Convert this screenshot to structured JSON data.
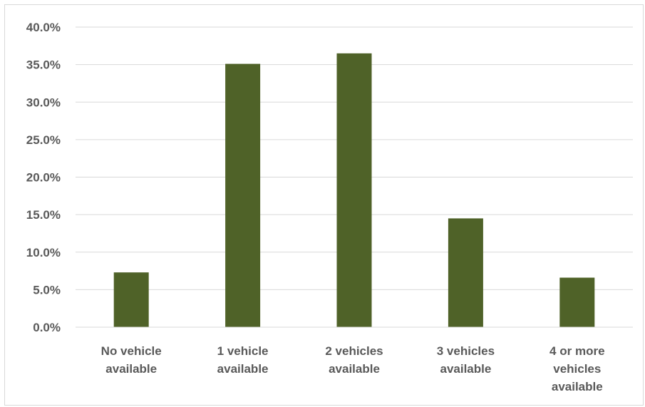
{
  "chart_data": {
    "type": "bar",
    "title": "",
    "xlabel": "",
    "ylabel": "",
    "categories": [
      "No vehicle available",
      "1 vehicle available",
      "2 vehicles available",
      "3 vehicles available",
      "4 or more vehicles available"
    ],
    "category_lines": [
      [
        "No vehicle",
        "available"
      ],
      [
        "1 vehicle",
        "available"
      ],
      [
        "2 vehicles",
        "available"
      ],
      [
        "3 vehicles",
        "available"
      ],
      [
        "4 or more",
        "vehicles",
        "available"
      ]
    ],
    "values": [
      7.3,
      35.1,
      36.5,
      14.5,
      6.6
    ],
    "ylim": [
      0,
      40
    ],
    "y_ticks": [
      0,
      5,
      10,
      15,
      20,
      25,
      30,
      35,
      40
    ],
    "y_tick_labels": [
      "0.0%",
      "5.0%",
      "10.0%",
      "15.0%",
      "20.0%",
      "25.0%",
      "30.0%",
      "35.0%",
      "40.0%"
    ],
    "grid": true,
    "legend": "none",
    "bar_color": "#4f6228",
    "grid_color": "#d9d9d9"
  }
}
